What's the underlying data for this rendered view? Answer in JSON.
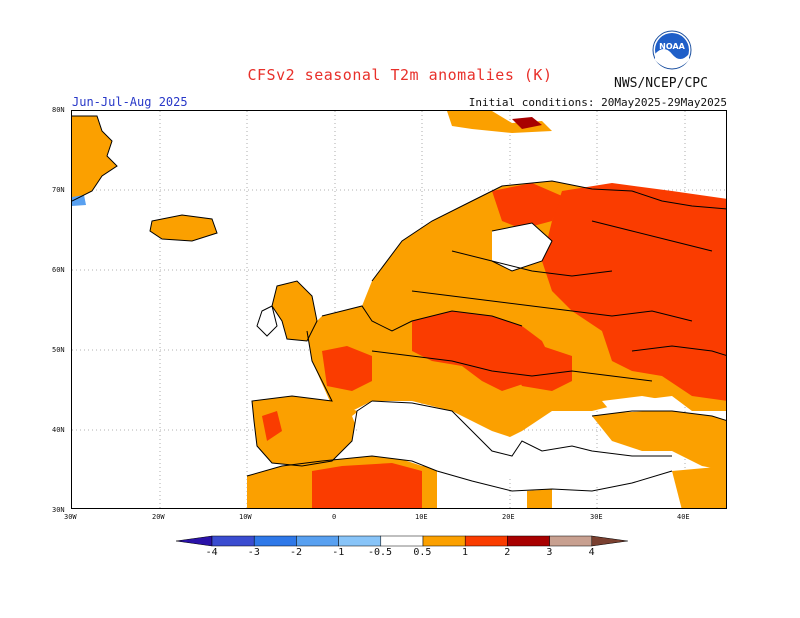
{
  "header": {
    "title": "CFSv2 seasonal T2m anomalies (K)",
    "season": "Jun-Jul-Aug 2025",
    "initial_conditions": "Initial conditions: 20May2025-29May2025",
    "agency": "NWS/NCEP/CPC",
    "logo_text": "NOAA"
  },
  "axes": {
    "lat_labels": [
      "80N",
      "70N",
      "60N",
      "50N",
      "40N",
      "30N"
    ],
    "lon_labels": [
      "30W",
      "20W",
      "10W",
      "0",
      "10E",
      "20E",
      "30E",
      "40E"
    ]
  },
  "legend": {
    "labels": [
      "-4",
      "-3",
      "-2",
      "-1",
      "-0.5",
      "0.5",
      "1",
      "2",
      "3",
      "4"
    ],
    "colors": [
      "#2a12a8",
      "#3a4cd0",
      "#2e78e8",
      "#58a0f0",
      "#88c4f8",
      "#ffffff",
      "#fba000",
      "#fa3c00",
      "#a80000",
      "#c8a090",
      "#7a4030"
    ]
  },
  "map_colors": {
    "land_outline": "#000000",
    "anom_0_5_1": "#fba000",
    "anom_1_2": "#fa3c00",
    "anom_2_3": "#a80000",
    "cold": "#58a0f0"
  }
}
